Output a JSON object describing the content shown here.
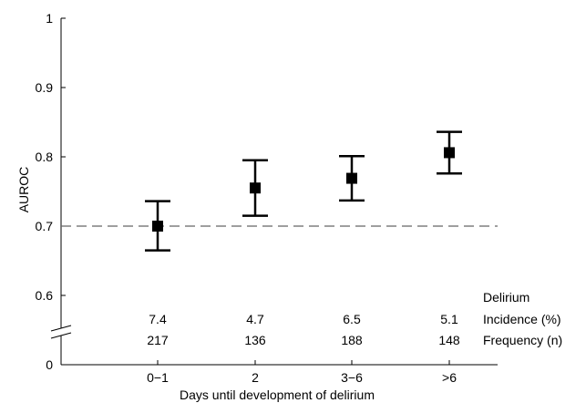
{
  "chart_data": {
    "type": "scatter",
    "title": "",
    "xlabel": "Days until development of delirium",
    "ylabel": "AUROC",
    "categories": [
      "0−1",
      "2",
      "3−6",
      ">6"
    ],
    "series": [
      {
        "values": [
          0.7,
          0.755,
          0.769,
          0.806
        ],
        "lower": [
          0.665,
          0.715,
          0.737,
          0.776
        ],
        "upper": [
          0.736,
          0.795,
          0.801,
          0.836
        ]
      }
    ],
    "ylim": [
      0.6,
      1.0
    ],
    "yticks": [
      "0",
      "0.6",
      "0.7",
      "0.8",
      "0.9",
      "1"
    ],
    "reference_line": {
      "y": 0.7,
      "style": "dashed"
    },
    "axis_break": true,
    "grid": false,
    "table": {
      "header": "Delirium",
      "rows": [
        {
          "label": "Incidence (%)",
          "values": [
            "7.4",
            "4.7",
            "6.5",
            "5.1"
          ]
        },
        {
          "label": "Frequency (n)",
          "values": [
            "217",
            "136",
            "188",
            "148"
          ]
        }
      ]
    },
    "colors": {
      "marker": "#000000",
      "reference": "#666666",
      "axis": "#000000"
    }
  }
}
